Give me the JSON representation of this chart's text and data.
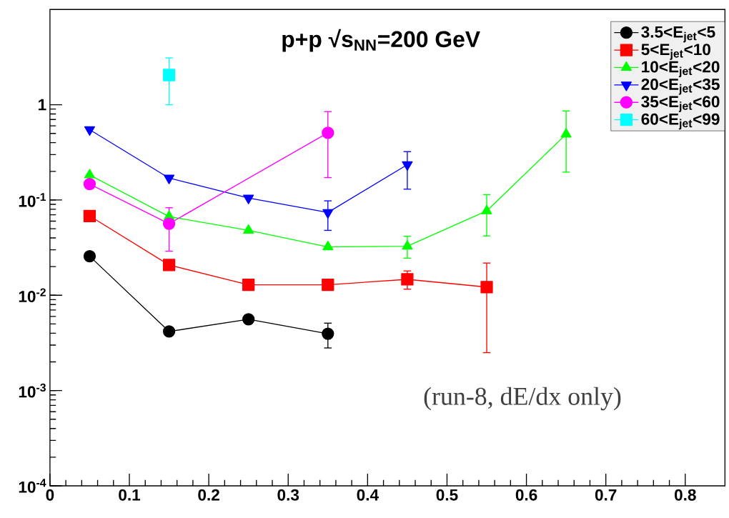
{
  "chart_data": {
    "type": "line",
    "title": "p+p √s$_{NN}$=200 GeV",
    "annotations": [
      "(run-8, dE/dx only)"
    ],
    "xlim": [
      0,
      0.85
    ],
    "xticks": [
      0,
      0.1,
      0.2,
      0.3,
      0.4,
      0.5,
      0.6,
      0.7,
      0.8
    ],
    "ylim": [
      0.0001,
      10
    ],
    "log": "y",
    "yticks": [
      {
        "value": 0.0001,
        "label": "10$^{-4}$"
      },
      {
        "value": 0.001,
        "label": "10$^{-3}$"
      },
      {
        "value": 0.01,
        "label": "10$^{-2}$"
      },
      {
        "value": 0.1,
        "label": "10$^{-1}$"
      },
      1
    ],
    "legend": "top right",
    "series": [
      {
        "name": "3.5<E$_{jet}$<5",
        "color": "#000000",
        "marker": "circle",
        "x": [
          0.05,
          0.15,
          0.25,
          0.35
        ],
        "values": [
          0.0257,
          0.00417,
          0.0056,
          0.00395
        ],
        "errors": [
          null,
          null,
          null,
          [
            0.0028,
            0.0051
          ]
        ]
      },
      {
        "name": "5<E$_{jet}$<10",
        "color": "#ff0000",
        "marker": "square",
        "x": [
          0.05,
          0.15,
          0.25,
          0.35,
          0.45,
          0.55
        ],
        "values": [
          0.068,
          0.0208,
          0.0129,
          0.0129,
          0.0147,
          0.0122
        ],
        "errors": [
          null,
          null,
          null,
          null,
          [
            0.0116,
            0.018
          ],
          [
            0.0025,
            0.0218
          ]
        ]
      },
      {
        "name": "10<E$_{jet}$<20",
        "color": "#00ff00",
        "marker": "triangle",
        "x": [
          0.05,
          0.15,
          0.25,
          0.35,
          0.45,
          0.55,
          0.65
        ],
        "values": [
          0.183,
          0.067,
          0.048,
          0.0322,
          0.0327,
          0.0768,
          0.49
        ],
        "errors": [
          null,
          null,
          null,
          null,
          [
            0.0245,
            0.0417
          ],
          [
            0.042,
            0.114
          ],
          [
            0.196,
            0.86
          ]
        ]
      },
      {
        "name": "20<E$_{jet}$<35",
        "color": "#0000ff",
        "marker": "triangle down",
        "x": [
          0.05,
          0.15,
          0.25,
          0.35,
          0.45
        ],
        "values": [
          0.547,
          0.17,
          0.105,
          0.074,
          0.235
        ],
        "errors": [
          null,
          null,
          null,
          [
            0.048,
            0.098
          ],
          [
            0.13,
            0.322
          ]
        ]
      },
      {
        "name": "35<E$_{jet}$<60",
        "color": "#ff00ff",
        "marker": "circle",
        "x": [
          0.05,
          0.15,
          0.35
        ],
        "values": [
          0.147,
          0.0564,
          0.507
        ],
        "errors": [
          null,
          [
            0.029,
            0.083
          ],
          [
            0.172,
            0.847
          ]
        ]
      },
      {
        "name": "60<E$_{jet}$<99",
        "color": "#00ffff",
        "marker": "square",
        "x": [
          0.15
        ],
        "values": [
          2.05
        ],
        "errors": [
          [
            1.0,
            3.1
          ]
        ]
      }
    ]
  }
}
